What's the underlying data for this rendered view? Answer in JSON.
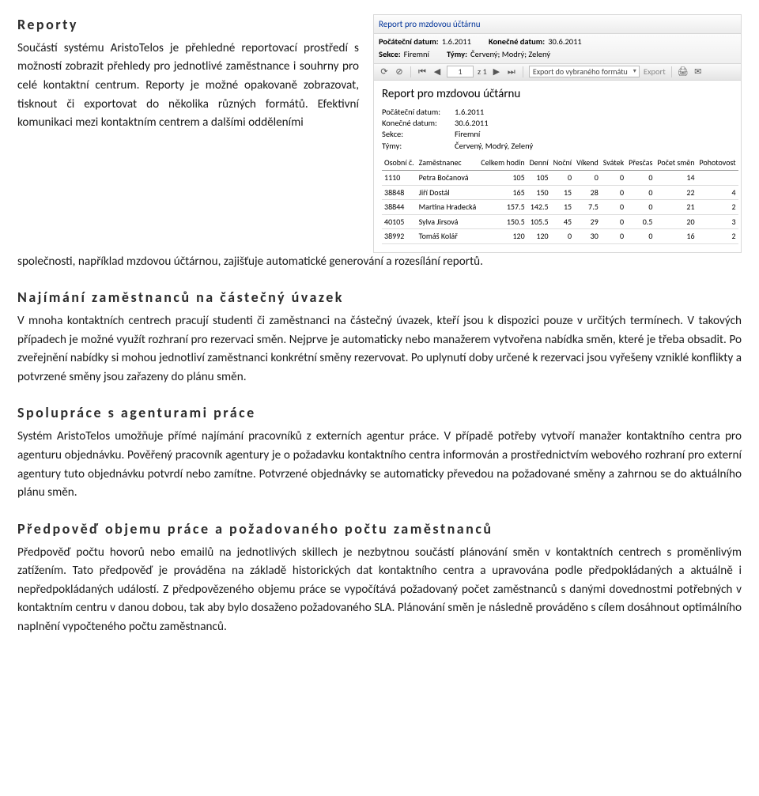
{
  "sec1": {
    "title": "Reporty",
    "para": "Součástí systému AristoTelos je přehledné reportovací prostředí s možností zobrazit přehledy pro jednotlivé zaměstnance i souhrny pro celé kontaktní centrum. Reporty je možné opakovaně zobrazovat, tisknout či exportovat do několika různých formátů. Efektivní komunikaci mezi kontaktním centrem a dalšími odděleními",
    "para_tail": "společnosti, například mzdovou účtárnou, zajišťuje automatické generování a rozesílání reportů."
  },
  "sec2": {
    "title": "Najímání zaměstnanců na částečný úvazek",
    "para": "V mnoha kontaktních centrech pracují studenti či zaměstnanci na částečný úvazek, kteří jsou k dispozici pouze v určitých termínech. V takových případech je možné využít rozhraní pro rezervaci směn. Nejprve je automaticky nebo manažerem vytvořena nabídka směn, které je třeba obsadit. Po zveřejnění nabídky si mohou jednotliví zaměstnanci konkrétní směny rezervovat. Po uplynutí doby určené k rezervaci jsou vyřešeny vzniklé konflikty a potvrzené směny jsou zařazeny do plánu směn."
  },
  "sec3": {
    "title": "Spolupráce s agenturami práce",
    "para": "Systém AristoTelos umožňuje přímé najímání pracovníků z externích agentur práce. V případě potřeby vytvoří manažer kontaktního centra pro agenturu objednávku. Pověřený pracovník agentury je o požadavku kontaktního centra informován a prostřednictvím webového rozhraní pro externí agentury tuto objednávku potvrdí nebo zamítne. Potvrzené objednávky se automaticky převedou na požadované směny a zahrnou se do aktuálního plánu směn."
  },
  "sec4": {
    "title": "Předpověď objemu práce a požadovaného počtu zaměstnanců",
    "para": "Předpověď počtu hovorů nebo emailů na jednotlivých skillech je nezbytnou součástí plánování směn v kontaktních centrech s proměnlivým zatížením. Tato předpověď je prováděna na základě historických dat kontaktního centra a upravována podle předpokládaných a aktuálně i nepředpokládaných událostí. Z předpovězeného objemu práce se vypočítává požadovaný počet zaměstnanců s danými dovednostmi potřebných v kontaktním centru v danou dobou, tak aby bylo dosaženo požadovaného SLA. Plánování směn je následně prováděno s cílem dosáhnout optimálního naplnění vypočteného počtu zaměstnanců."
  },
  "report": {
    "titlebar": "Report pro mzdovou účtárnu",
    "filters": {
      "l1": "Počáteční datum:",
      "v1": "1.6.2011",
      "l2": "Konečné datum:",
      "v2": "30.6.2011",
      "l3": "Sekce:",
      "v3": "Firemní",
      "l4": "Týmy:",
      "v4": "Červený; Modrý; Zelený"
    },
    "toolbar": {
      "page": "1",
      "of_label": "z 1",
      "export_label": "Export do vybraného formátu",
      "export_btn": "Export"
    },
    "heading": "Report pro mzdovou účtárnu",
    "meta": {
      "l1": "Počáteční datum:",
      "v1": "1.6.2011",
      "l2": "Konečné datum:",
      "v2": "30.6.2011",
      "l3": "Sekce:",
      "v3": "Firemní",
      "l4": "Týmy:",
      "v4": "Červený, Modrý, Zelený"
    },
    "cols": [
      "Osobní č.",
      "Zaměstnanec",
      "Celkem hodin",
      "Denní",
      "Noční",
      "Víkend",
      "Svátek",
      "Přesčas",
      "Počet směn",
      "Pohotovost"
    ],
    "rows": [
      [
        "1110",
        "Petra Bočanová",
        "105",
        "105",
        "0",
        "0",
        "0",
        "0",
        "14",
        ""
      ],
      [
        "38848",
        "Jiří Dostál",
        "165",
        "150",
        "15",
        "28",
        "0",
        "0",
        "22",
        "4"
      ],
      [
        "38844",
        "Martina Hradecká",
        "157.5",
        "142.5",
        "15",
        "7.5",
        "0",
        "0",
        "21",
        "2"
      ],
      [
        "40105",
        "Sylva Jirsová",
        "150.5",
        "105.5",
        "45",
        "29",
        "0",
        "0.5",
        "20",
        "3"
      ],
      [
        "38992",
        "Tomáš Kolář",
        "120",
        "120",
        "0",
        "30",
        "0",
        "0",
        "16",
        "2"
      ]
    ]
  }
}
